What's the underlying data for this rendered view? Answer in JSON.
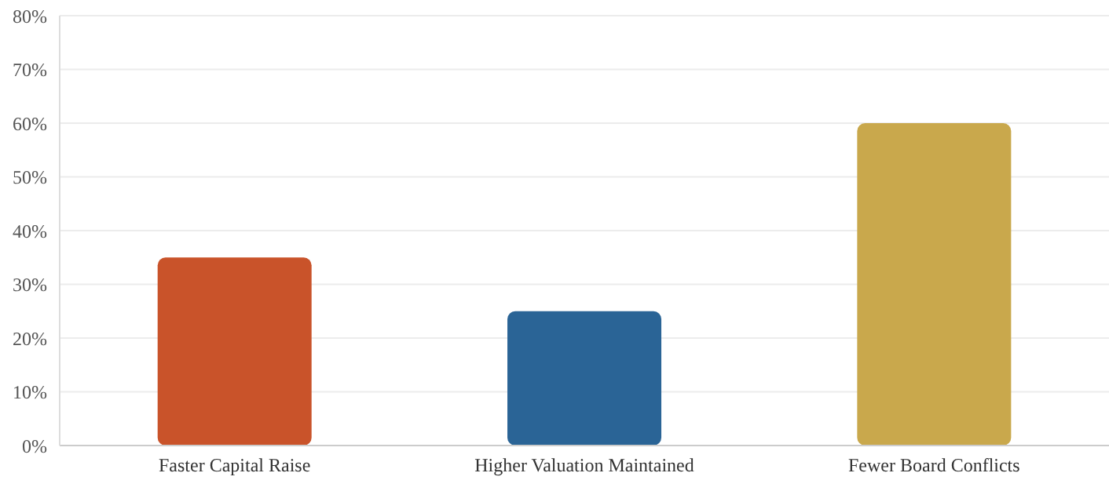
{
  "chart_data": {
    "type": "bar",
    "categories": [
      "Faster Capital Raise",
      "Higher Valuation Maintained",
      "Fewer Board Conflicts"
    ],
    "values": [
      35,
      25,
      60
    ],
    "colors": [
      "#c9532a",
      "#2a6496",
      "#c9a84c"
    ],
    "ylim": [
      0,
      80
    ],
    "yticks": [
      {
        "value": 0,
        "label": "0%"
      },
      {
        "value": 10,
        "label": "10%"
      },
      {
        "value": 20,
        "label": "20%"
      },
      {
        "value": 30,
        "label": "30%"
      },
      {
        "value": 40,
        "label": "40%"
      },
      {
        "value": 50,
        "label": "50%"
      },
      {
        "value": 60,
        "label": "60%"
      },
      {
        "value": 70,
        "label": "70%"
      },
      {
        "value": 80,
        "label": "80%"
      }
    ],
    "grid": "y",
    "legend": false
  }
}
